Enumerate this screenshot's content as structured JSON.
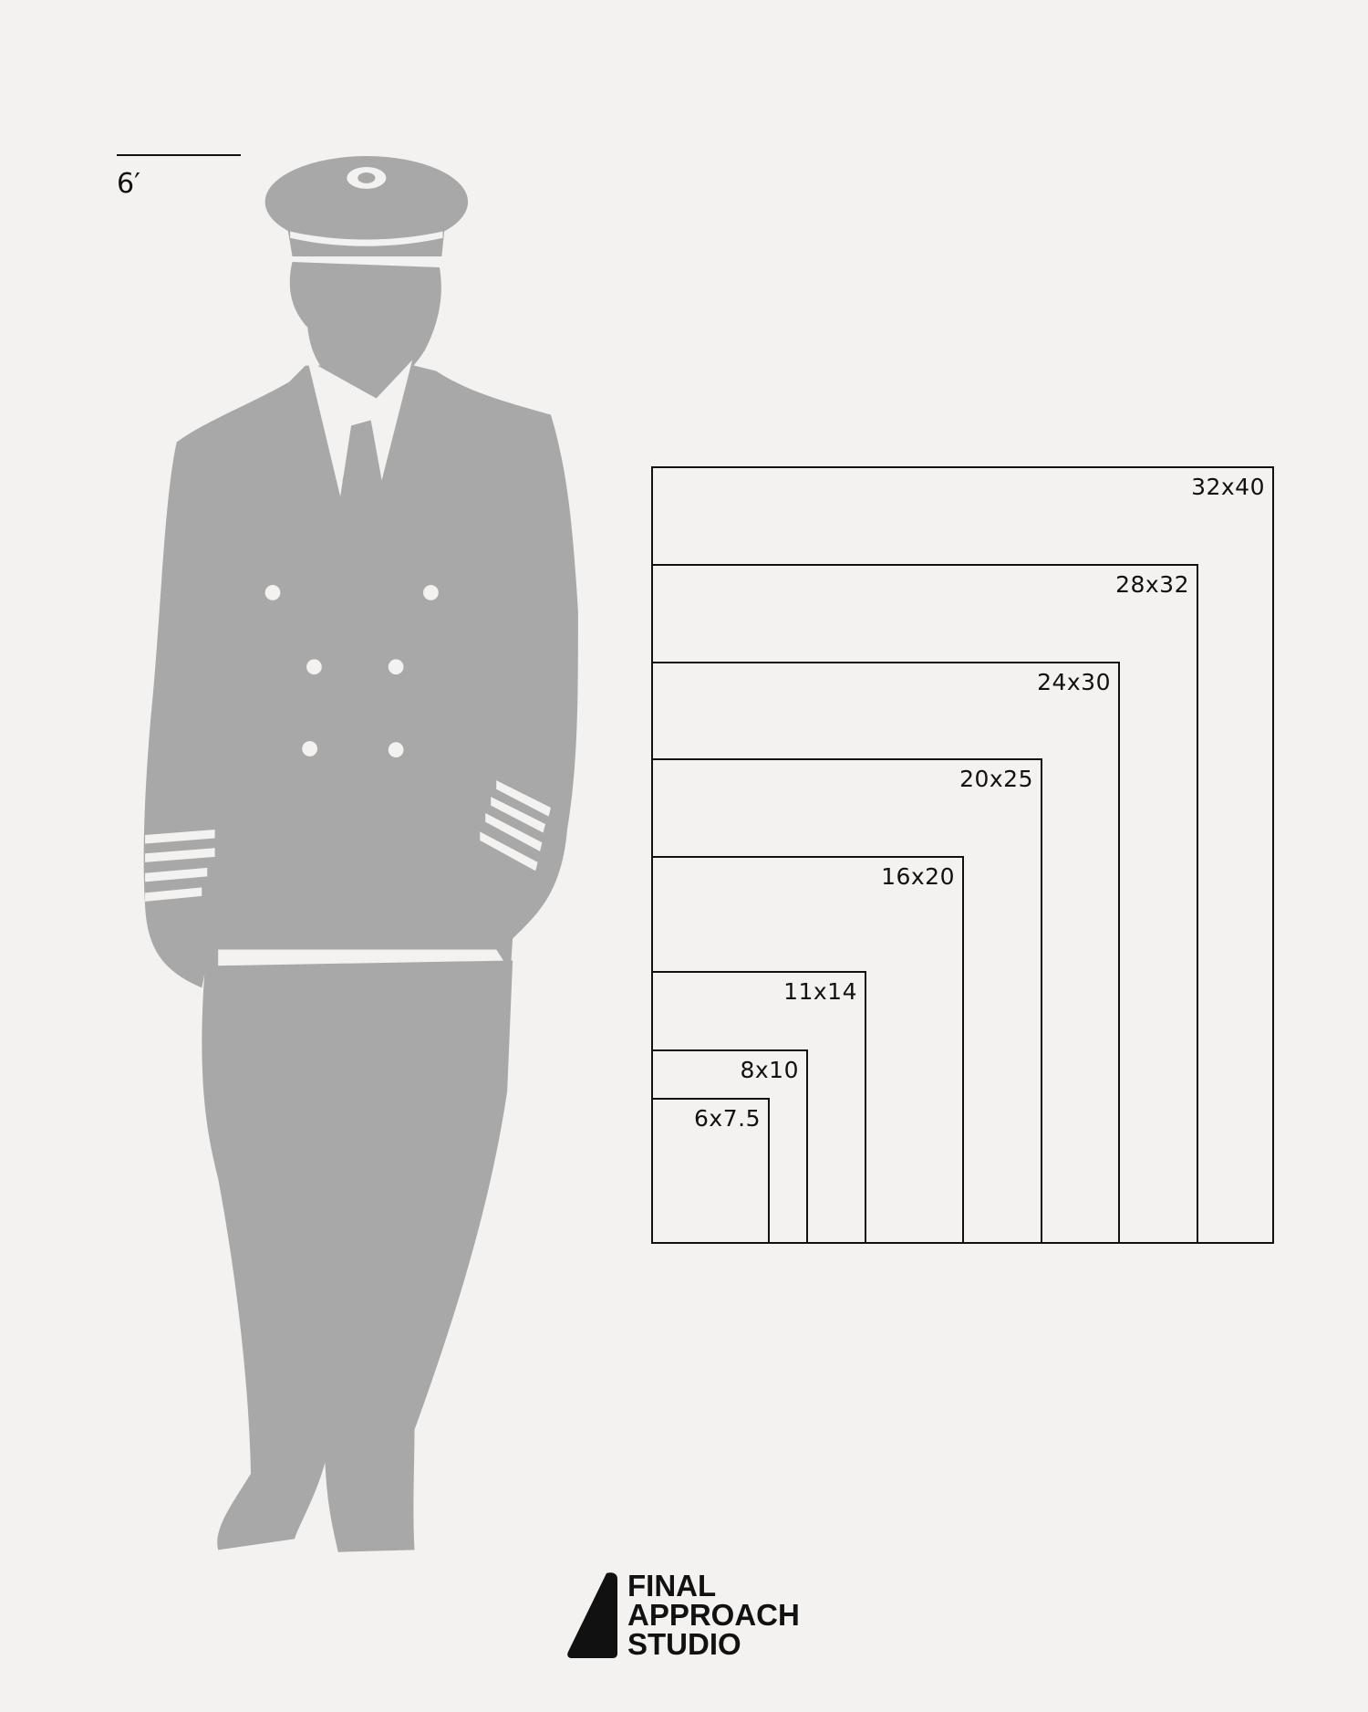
{
  "scale_marker": {
    "label": "6′"
  },
  "frames": [
    {
      "label": "32x40"
    },
    {
      "label": "28x32"
    },
    {
      "label": "24x30"
    },
    {
      "label": "20x25"
    },
    {
      "label": "16x20"
    },
    {
      "label": "11x14"
    },
    {
      "label": "8x10"
    },
    {
      "label": "6x7.5"
    }
  ],
  "logo": {
    "lines": [
      "FINAL",
      "APPROACH",
      "STUDIO"
    ]
  },
  "colors": {
    "background": "#f3f2f0",
    "silhouette": "#a8a8a8",
    "lines": "#111111"
  }
}
